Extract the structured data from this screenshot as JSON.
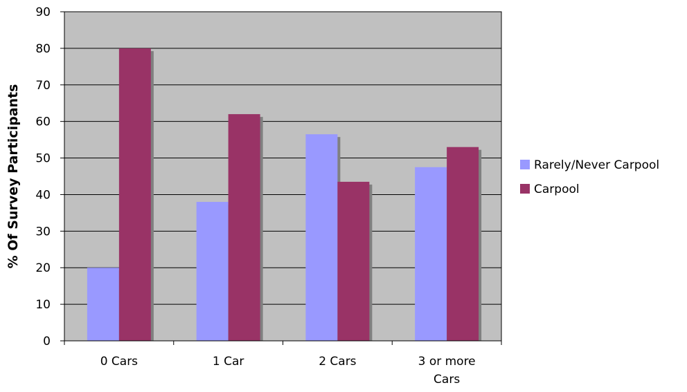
{
  "chart_data": {
    "type": "bar",
    "ylabel": "% Of Survey Participants",
    "ylim": [
      0,
      90
    ],
    "yticks": [
      0,
      10,
      20,
      30,
      40,
      50,
      60,
      70,
      80,
      90
    ],
    "grid": true,
    "legend_position": "right",
    "categories": [
      [
        "0 Cars"
      ],
      [
        "1 Car"
      ],
      [
        "2 Cars"
      ],
      [
        "3 or more",
        "Cars"
      ]
    ],
    "series": [
      {
        "name": "Rarely/Never Carpool",
        "color": "#9999ff",
        "values": [
          20,
          38,
          56.5,
          47.5
        ]
      },
      {
        "name": "Carpool",
        "color": "#993366",
        "values": [
          80,
          62,
          43.5,
          53
        ]
      }
    ],
    "plot_background": "#c0c0c0",
    "shadow_color": "#808080"
  }
}
